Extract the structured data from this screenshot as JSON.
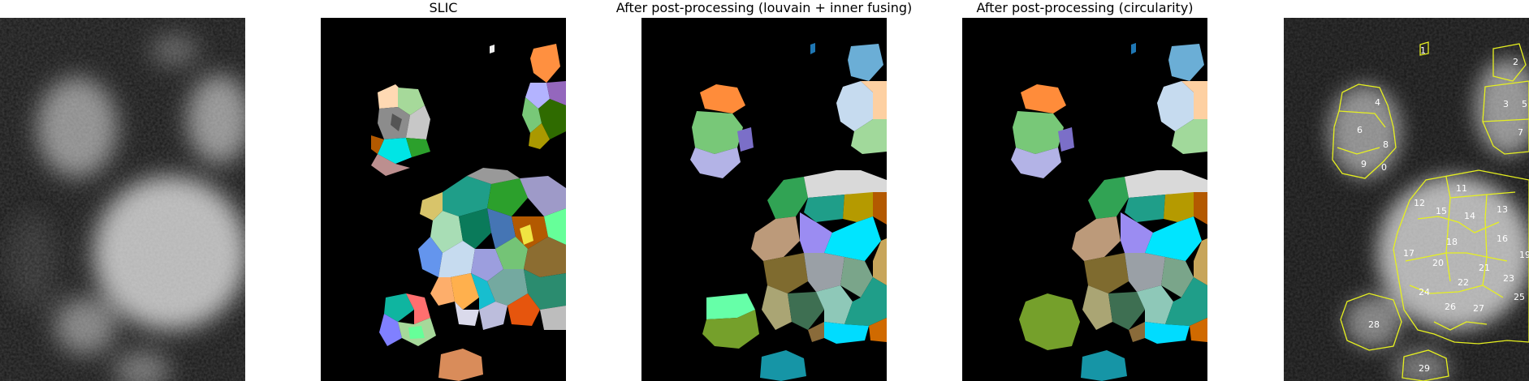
{
  "panels": [
    {
      "title": ""
    },
    {
      "title": "SLIC"
    },
    {
      "title": "After post-processing (louvain + inner fusing)"
    },
    {
      "title": "After post-processing (circularity)"
    },
    {
      "title": ""
    }
  ],
  "overlay_labels": [
    "1",
    "2",
    "3",
    "4",
    "5",
    "6",
    "7",
    "8",
    "9",
    "0",
    "11",
    "12",
    "13",
    "14",
    "15",
    "16",
    "17",
    "18",
    "19",
    "20",
    "21",
    "22",
    "23",
    "24",
    "25",
    "26",
    "27",
    "28",
    "29"
  ]
}
